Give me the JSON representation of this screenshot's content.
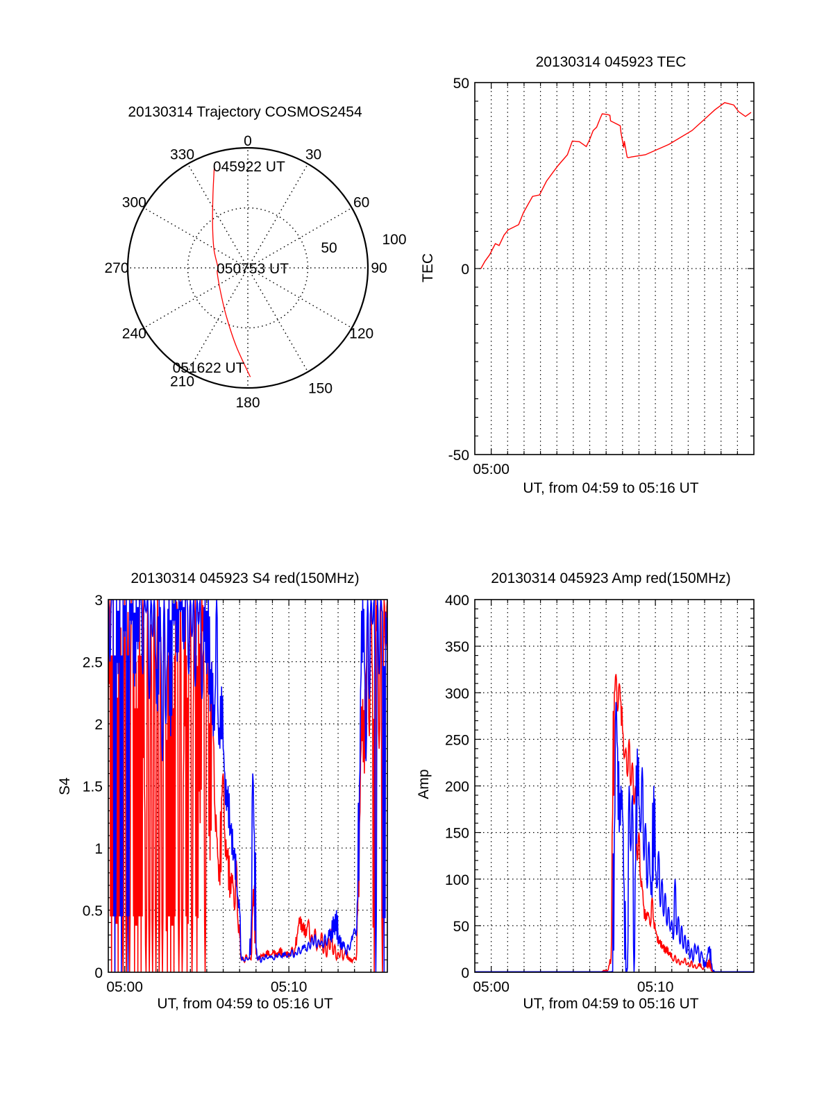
{
  "figure": {
    "background": "#ffffff",
    "series_colors": {
      "red": "#ff0000",
      "blue": "#0000ff"
    }
  },
  "chart_data": [
    {
      "id": "trajectory",
      "type": "polar",
      "title": "20130314 Trajectory COSMOS2454",
      "angle_labels": [
        "0",
        "30",
        "60",
        "90",
        "120",
        "150",
        "180",
        "210",
        "240",
        "270",
        "300",
        "330"
      ],
      "angle_values_deg": [
        0,
        30,
        60,
        90,
        120,
        150,
        180,
        210,
        240,
        270,
        300,
        330
      ],
      "radial_labels": [
        "50",
        "100"
      ],
      "radial_values": [
        50,
        100
      ],
      "rlim": [
        0,
        100
      ],
      "grid": true,
      "series": [
        {
          "name": "trajectory",
          "color": "#ff0000",
          "points_az_r": [
            [
              342.1,
              90.5
            ],
            [
              333.9,
              66.1
            ],
            [
              319.5,
              45.1
            ],
            [
              298.1,
              31.9
            ],
            [
              270.0,
              24.8
            ],
            [
              260.6,
              25.8
            ],
            [
              223.0,
              32.2
            ],
            [
              201.9,
              46.1
            ],
            [
              188.1,
              66.6
            ],
            [
              178.7,
              90.9
            ]
          ]
        }
      ],
      "annotations": [
        {
          "text": "045922 UT",
          "az": 342.1,
          "r": 90.5
        },
        {
          "text": "050753 UT",
          "az": 270.0,
          "r": 24.8
        },
        {
          "text": "051622 UT",
          "az": 178.7,
          "r": 90.9
        }
      ]
    },
    {
      "id": "tec",
      "type": "line",
      "title": "20130314 045923 TEC",
      "xlabel": "UT, from 04:59 to 05:16 UT",
      "ylabel": "TEC",
      "x_units": "minutes after 05:00",
      "xlim": [
        -1,
        16
      ],
      "ylim": [
        -50,
        50
      ],
      "yticks": [
        -50,
        0,
        50
      ],
      "ytick_labels": [
        "-50",
        "0",
        "50"
      ],
      "yminor_step": 5,
      "xticks": [
        0
      ],
      "xtick_labels": [
        "05:00"
      ],
      "xgrid_step": 1,
      "grid": true,
      "series": [
        {
          "name": "TEC",
          "color": "#ff0000",
          "x": [
            -0.63,
            -0.38,
            -0.1,
            0.25,
            0.48,
            0.78,
            1.03,
            1.67,
            1.97,
            2.52,
            2.94,
            3.37,
            3.8,
            4.09,
            4.64,
            4.94,
            5.37,
            5.79,
            6.0,
            6.21,
            6.42,
            6.63,
            6.76,
            7.1,
            7.23,
            7.27,
            7.86,
            7.9,
            8.07,
            8.11,
            8.28,
            8.33,
            8.54,
            9.39,
            10.83,
            12.23,
            13.63,
            14.22,
            14.77,
            15.07,
            15.49,
            15.83
          ],
          "y": [
            0.0,
            2.0,
            3.7,
            6.7,
            6.2,
            9.0,
            10.4,
            11.8,
            15.1,
            19.4,
            19.8,
            23.5,
            26.1,
            27.8,
            30.6,
            34.3,
            34.1,
            32.8,
            34.7,
            37.1,
            38.0,
            40.3,
            41.6,
            41.4,
            41.2,
            39.7,
            38.4,
            36.6,
            32.5,
            34.3,
            30.0,
            29.8,
            30.0,
            30.6,
            33.4,
            37.1,
            42.7,
            44.6,
            44.0,
            42.2,
            40.9,
            42.0
          ]
        }
      ]
    },
    {
      "id": "s4",
      "type": "line",
      "title": "20130314 045923 S4 red(150MHz)",
      "xlabel": "UT, from 04:59 to 05:16 UT",
      "ylabel": "S4",
      "x_units": "minutes after 05:00",
      "xlim": [
        -1,
        16
      ],
      "ylim": [
        0,
        3
      ],
      "yticks": [
        0,
        0.5,
        1,
        1.5,
        2,
        2.5,
        3
      ],
      "ytick_labels": [
        "0",
        "0.5",
        "1",
        "1.5",
        "2",
        "2.5",
        "3"
      ],
      "yminor_step": 0.1,
      "xticks": [
        0,
        10
      ],
      "xtick_labels": [
        "05:00",
        "05:10"
      ],
      "xgrid_step": 1,
      "grid": true,
      "x_start": -1,
      "x_step": 0.1,
      "series": [
        {
          "name": "red",
          "color": "#ff0000",
          "values": [
            2.2,
            3,
            0,
            3,
            0,
            2.6,
            0,
            3,
            1.5,
            0,
            3,
            0,
            2.9,
            0,
            3,
            3,
            0,
            2.5,
            0,
            3,
            0,
            3,
            1.5,
            0,
            3,
            0,
            2.8,
            0,
            3,
            0,
            3,
            0,
            2.7,
            0,
            3,
            2.2,
            0,
            3,
            0,
            2.5,
            0,
            3,
            2.9,
            0,
            3,
            0,
            1.8,
            3,
            0,
            2.6,
            3,
            0,
            2.4,
            3,
            0,
            2.9,
            1.2,
            3,
            2.7,
            0,
            2.6,
            2.2,
            0.9,
            2.5,
            1.9,
            1.3,
            1.1,
            0.9,
            0.7,
            1.4,
            1.6,
            1.1,
            0.9,
            1.0,
            0.6,
            0.8,
            0.7,
            0.5,
            0.9,
            0.4,
            0.3,
            0.1,
            0.12,
            0.08,
            0.14,
            0.1,
            0.12,
            0.1,
            0.5,
            0.7,
            0.15,
            0.12,
            0.1,
            0.14,
            0.13,
            0.15,
            0.12,
            0.18,
            0.13,
            0.14,
            0.15,
            0.18,
            0.12,
            0.16,
            0.14,
            0.2,
            0.12,
            0.15,
            0.13,
            0.17,
            0.12,
            0.16,
            0.2,
            0.14,
            0.2,
            0.3,
            0.38,
            0.45,
            0.32,
            0.4,
            0.28,
            0.36,
            0.42,
            0.25,
            0.3,
            0.22,
            0.35,
            0.18,
            0.26,
            0.2,
            0.32,
            0.15,
            0.25,
            0.12,
            0.28,
            0.18,
            0.35,
            0.14,
            0.22,
            0.1,
            0.16,
            0.12,
            0.24,
            0.1,
            0.15,
            0.18,
            0.1,
            0.12,
            0.08,
            0.1,
            0.12,
            0.1,
            0.5,
            1.2,
            1.8,
            2.2,
            1.6,
            2.4,
            2.9,
            1.9,
            3,
            2.4,
            0,
            3,
            2.7,
            1.8,
            3,
            0,
            3,
            2.6,
            3
          ]
        },
        {
          "name": "blue",
          "color": "#0000ff",
          "values": [
            3,
            2.5,
            3,
            3,
            0,
            3,
            2.4,
            3,
            0,
            3,
            2.7,
            3,
            0,
            3,
            2.8,
            3,
            2.3,
            3,
            2.6,
            3,
            3,
            2.4,
            3,
            2.9,
            3,
            2.2,
            3,
            2.7,
            3,
            2.5,
            2.1,
            3,
            2.6,
            1.7,
            3,
            2.0,
            2.5,
            3,
            1.9,
            3,
            2.8,
            3,
            2.5,
            3,
            2.9,
            3,
            2.6,
            3,
            3,
            2.4,
            3,
            2.7,
            3,
            2.3,
            3,
            2.8,
            3,
            2.2,
            2.6,
            3,
            2.4,
            3,
            2.1,
            2.5,
            1.9,
            2.2,
            3,
            2.0,
            1.8,
            2.3,
            1.8,
            1.6,
            1.3,
            1.5,
            1.1,
            1.2,
            0.9,
            1.0,
            0.7,
            0.6,
            0.5,
            0.12,
            0.1,
            0.09,
            0.12,
            0.1,
            0.11,
            0.3,
            1.6,
            1.1,
            0.2,
            0.1,
            0.13,
            0.08,
            0.12,
            0.1,
            0.14,
            0.11,
            0.12,
            0.13,
            0.12,
            0.1,
            0.14,
            0.12,
            0.15,
            0.13,
            0.12,
            0.16,
            0.14,
            0.12,
            0.15,
            0.13,
            0.18,
            0.12,
            0.16,
            0.14,
            0.2,
            0.15,
            0.18,
            0.22,
            0.2,
            0.17,
            0.24,
            0.19,
            0.28,
            0.22,
            0.3,
            0.2,
            0.26,
            0.22,
            0.25,
            0.2,
            0.3,
            0.22,
            0.28,
            0.35,
            0.24,
            0.45,
            0.3,
            0.5,
            0.22,
            0.3,
            0.18,
            0.25,
            0.2,
            0.14,
            0.22,
            0.18,
            0.25,
            0.3,
            0.35,
            0.3,
            0.6,
            1.5,
            2.4,
            3,
            2.5,
            1.7,
            3,
            2.2,
            3,
            2.8,
            3,
            0,
            3,
            2.4,
            3,
            2.9,
            0,
            2.9,
            2.6
          ]
        }
      ]
    },
    {
      "id": "amp",
      "type": "line",
      "title": "20130314 045923 Amp red(150MHz)",
      "xlabel": "UT, from 04:59 to 05:16 UT",
      "ylabel": "Amp",
      "x_units": "minutes after 05:00",
      "xlim": [
        -1,
        16
      ],
      "ylim": [
        0,
        400
      ],
      "yticks": [
        0,
        50,
        100,
        150,
        200,
        250,
        300,
        350,
        400
      ],
      "ytick_labels": [
        "0",
        "50",
        "100",
        "150",
        "200",
        "250",
        "300",
        "350",
        "400"
      ],
      "yminor_step": 10,
      "xticks": [
        0,
        10
      ],
      "xtick_labels": [
        "05:00",
        "05:10"
      ],
      "xgrid_step": 1,
      "grid": true,
      "x_start": -1,
      "x_step": 0.1,
      "series": [
        {
          "name": "red",
          "color": "#ff0000",
          "values": [
            0.5,
            0.5,
            0.5,
            0.5,
            0.5,
            0.5,
            0.5,
            0.5,
            0.5,
            0.5,
            0.5,
            0.5,
            0.5,
            0.5,
            0.5,
            0.5,
            0.5,
            0.5,
            0.5,
            0.5,
            0.5,
            0.5,
            0.5,
            0.5,
            0.5,
            0.5,
            0.5,
            0.5,
            0.5,
            0.5,
            0.5,
            0.5,
            0.5,
            0.5,
            0.5,
            0.5,
            0.5,
            0.5,
            0.5,
            0.5,
            0.5,
            0.5,
            0.5,
            0.5,
            0.5,
            0.5,
            0.5,
            0.5,
            0.5,
            0.5,
            0.5,
            0.5,
            0.5,
            0.5,
            0.5,
            0.5,
            0.5,
            0.5,
            0.5,
            0.5,
            0.5,
            0.5,
            0.5,
            0.5,
            0.5,
            0.5,
            0.5,
            0.5,
            0.5,
            0.5,
            0.5,
            0.5,
            0.5,
            0.5,
            0.5,
            0.5,
            0.5,
            0.5,
            1,
            2,
            1,
            2,
            8,
            15,
            170,
            300,
            320,
            280,
            310,
            290,
            260,
            230,
            240,
            210,
            250,
            200,
            225,
            180,
            200,
            120,
            150,
            100,
            90,
            70,
            55,
            65,
            60,
            50,
            80,
            55,
            45,
            40,
            30,
            35,
            25,
            30,
            20,
            28,
            18,
            22,
            15,
            12,
            18,
            10,
            14,
            8,
            12,
            10,
            15,
            8,
            10,
            6,
            12,
            5,
            8,
            4,
            6,
            10,
            5,
            3,
            8,
            12,
            4,
            15,
            2,
            0.5,
            0.5,
            0.5,
            0.5,
            0.5,
            0.5,
            0.5,
            0.5,
            0.5,
            0.5,
            0.5,
            0.5,
            0.5,
            0.5,
            0.5,
            0.5,
            0.5,
            0.5,
            0.5,
            0.5,
            0.5,
            0.5,
            0.5,
            0.5,
            0.5,
            0.5
          ]
        },
        {
          "name": "blue",
          "color": "#0000ff",
          "values": [
            0.5,
            0.5,
            0.5,
            0.5,
            0.5,
            0.5,
            0.5,
            0.5,
            0.5,
            0.5,
            0.5,
            0.5,
            0.5,
            0.5,
            0.5,
            0.5,
            0.5,
            0.5,
            0.5,
            0.5,
            0.5,
            0.5,
            0.5,
            0.5,
            0.5,
            0.5,
            0.5,
            0.5,
            0.5,
            0.5,
            0.5,
            0.5,
            0.5,
            0.5,
            0.5,
            0.5,
            0.5,
            0.5,
            0.5,
            0.5,
            0.5,
            0.5,
            0.5,
            0.5,
            0.5,
            0.5,
            0.5,
            0.5,
            0.5,
            0.5,
            0.5,
            0.5,
            0.5,
            0.5,
            0.5,
            0.5,
            0.5,
            0.5,
            0.5,
            0.5,
            0.5,
            0.5,
            0.5,
            0.5,
            0.5,
            0.5,
            0.5,
            0.5,
            0.5,
            0.5,
            0.5,
            0.5,
            0.5,
            0.5,
            0.5,
            0.5,
            0.5,
            0.5,
            0.5,
            0.5,
            0.5,
            0.5,
            0.5,
            0.5,
            1,
            150,
            290,
            240,
            150,
            200,
            170,
            90,
            0,
            5,
            200,
            130,
            190,
            0,
            120,
            240,
            180,
            150,
            220,
            120,
            160,
            90,
            140,
            100,
            80,
            200,
            110,
            90,
            130,
            70,
            100,
            60,
            85,
            50,
            70,
            45,
            55,
            35,
            100,
            40,
            60,
            30,
            50,
            25,
            40,
            20,
            35,
            15,
            25,
            12,
            30,
            20,
            28,
            10,
            22,
            15,
            5,
            12,
            20,
            28,
            10,
            2,
            0.5,
            0.5,
            0.5,
            0.5,
            0.5,
            0.5,
            0.5,
            0.5,
            0.5,
            0.5,
            0.5,
            0.5,
            0.5,
            0.5,
            0.5,
            0.5,
            0.5,
            0.5,
            0.5,
            0.5,
            0.5,
            0.5,
            0.5,
            0.5,
            0.5
          ]
        }
      ]
    }
  ]
}
